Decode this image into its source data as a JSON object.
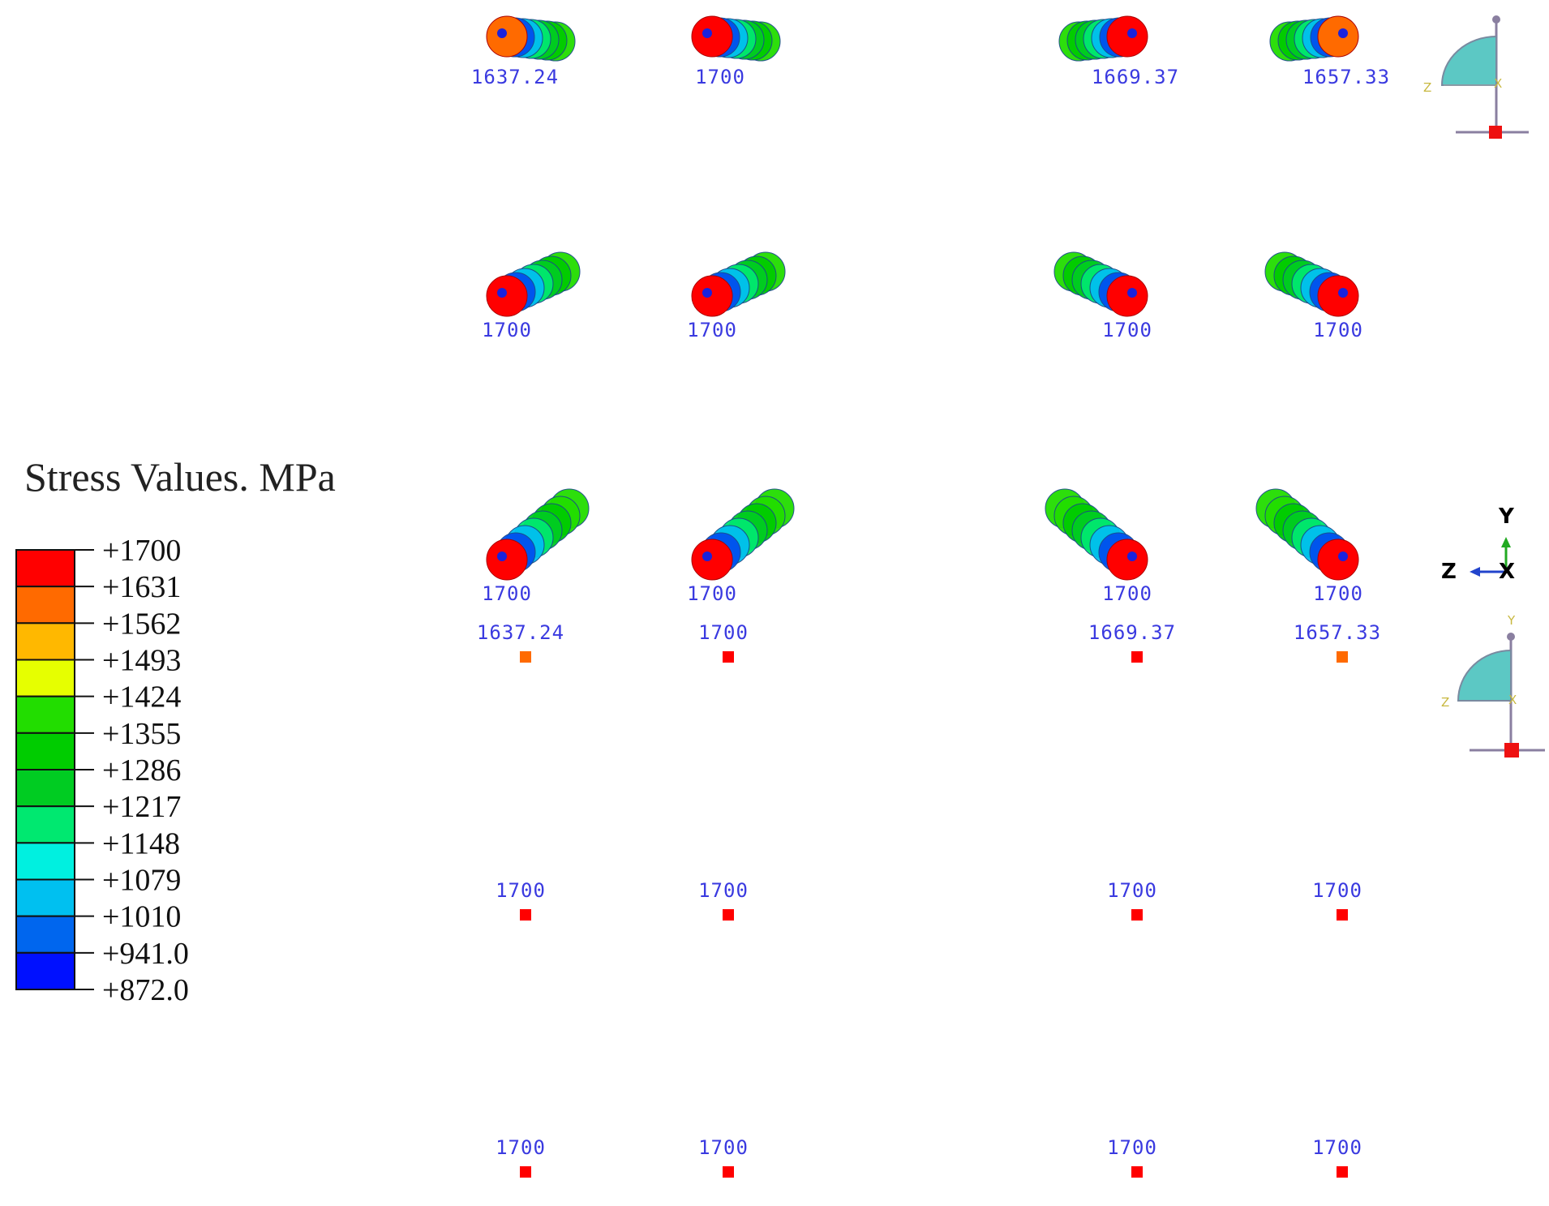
{
  "legend": {
    "title": "Stress Values. MPa",
    "levels": [
      {
        "label": "+1700",
        "color": "#ff0000"
      },
      {
        "label": "+1631",
        "color": "#ff6a00"
      },
      {
        "label": "+1562",
        "color": "#ffb800"
      },
      {
        "label": "+1493",
        "color": "#e6ff00"
      },
      {
        "label": "+1424",
        "color": "#22dd00"
      },
      {
        "label": "+1355",
        "color": "#00cc00"
      },
      {
        "label": "+1286",
        "color": "#00cc22"
      },
      {
        "label": "+1217",
        "color": "#00e870"
      },
      {
        "label": "+1148",
        "color": "#00f0e0"
      },
      {
        "label": "+1079",
        "color": "#00c0f0"
      },
      {
        "label": "+1010",
        "color": "#0066ee"
      },
      {
        "label": "+941.0",
        "color": "#0010ff"
      },
      {
        "label": "+872.0",
        "color": ""
      }
    ]
  },
  "strand_rows": [
    [
      "1637.24",
      "1700",
      "1669.37",
      "1657.33"
    ],
    [
      "1700",
      "1700",
      "1700",
      "1700"
    ],
    [
      "1700",
      "1700",
      "1700",
      "1700"
    ]
  ],
  "anchor_rows": [
    [
      "1637.24",
      "1700",
      "1669.37",
      "1657.33"
    ],
    [
      "1700",
      "1700",
      "1700",
      "1700"
    ],
    [
      "1700",
      "1700",
      "1700",
      "1700"
    ]
  ],
  "strand_end_colors": [
    [
      "#ff6a00",
      "#ff0000",
      "#ff0000",
      "#ff6a00"
    ],
    [
      "#ff0000",
      "#ff0000",
      "#ff0000",
      "#ff0000"
    ],
    [
      "#ff0000",
      "#ff0000",
      "#ff0000",
      "#ff0000"
    ]
  ],
  "anchor_colors": [
    [
      "#ff6a00",
      "#ff0000",
      "#ff0000",
      "#ff6a00"
    ],
    [
      "#ff0000",
      "#ff0000",
      "#ff0000",
      "#ff0000"
    ],
    [
      "#ff0000",
      "#ff0000",
      "#ff0000",
      "#ff0000"
    ]
  ],
  "triad": {
    "y": "Y",
    "z": "Z",
    "x": "X"
  },
  "viewcube_top": {
    "z": "Z",
    "x": "X"
  },
  "viewcube_bottom": {
    "y": "Y",
    "z": "Z",
    "x": "X"
  }
}
